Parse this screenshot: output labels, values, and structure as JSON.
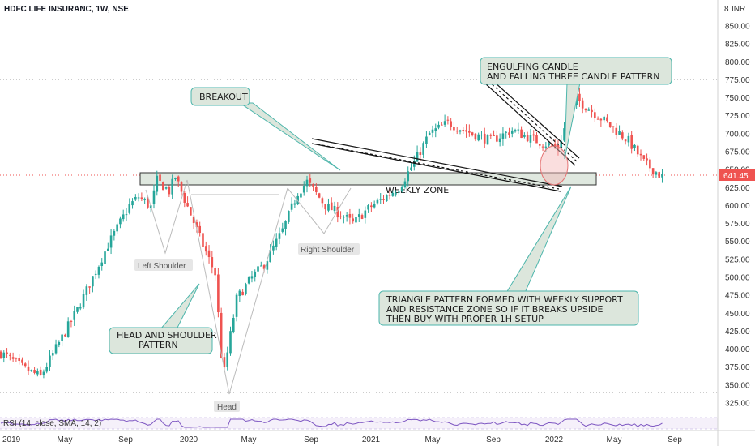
{
  "header": {
    "title": "HDFC LIFE INSURANC, 1W, NSE",
    "currency": "INR",
    "currency_badge": "8"
  },
  "price_tag": "641.45",
  "annotations": {
    "engulfing": [
      "ENGULFING CANDLE",
      "AND FALLING THREE CANDLE PATTERN"
    ],
    "breakout": [
      "BREAKOUT"
    ],
    "weekly_zone": "WEEKLY ZONE",
    "head_shoulder": [
      "HEAD AND SHOULDER",
      "PATTERN"
    ],
    "triangle": [
      "TRIANGLE PATTERN FORMED WITH WEEKLY SUPPORT",
      "AND RESISTANCE ZONE SO IF IT BREAKS UPSIDE",
      "THEN BUY WITH PROPER 1H SETUP"
    ],
    "left_shoulder": "Left Shoulder",
    "right_shoulder": "Right Shoulder",
    "head": "Head"
  },
  "rsi_label": "RSI (14, close, SMA, 14, 2)",
  "colors": {
    "up": "#26a69a",
    "down": "#ef5350",
    "zone": "#dfe8df",
    "callout": "#dce6dc",
    "callout_border": "#4db6ac",
    "price_tag": "#ef5350"
  },
  "chart_data": {
    "type": "candlestick",
    "title": "HDFC LIFE INSURANC, 1W, NSE",
    "x_ticks": [
      "2019",
      "May",
      "Sep",
      "2020",
      "May",
      "Sep",
      "2021",
      "May",
      "Sep",
      "2022",
      "May",
      "Sep"
    ],
    "y_ticks": [
      850,
      825,
      800,
      775,
      750,
      725,
      700,
      675,
      650,
      625,
      600,
      575,
      550,
      525,
      500,
      475,
      450,
      425,
      400,
      375,
      350,
      325
    ],
    "ylim": [
      305,
      875
    ],
    "last_price": 641.45,
    "zone": [
      628,
      645
    ],
    "dotted_levels": [
      775,
      641.45,
      342
    ],
    "waypoints": [
      [
        0,
        395
      ],
      [
        8,
        372
      ],
      [
        13,
        362
      ],
      [
        25,
        455
      ],
      [
        35,
        545
      ],
      [
        42,
        600
      ],
      [
        45,
        612
      ],
      [
        49,
        598
      ],
      [
        51,
        635
      ],
      [
        55,
        620
      ],
      [
        57,
        640
      ],
      [
        61,
        598
      ],
      [
        66,
        545
      ],
      [
        70,
        505
      ],
      [
        72,
        392
      ],
      [
        73,
        370
      ],
      [
        77,
        470
      ],
      [
        82,
        500
      ],
      [
        86,
        518
      ],
      [
        92,
        565
      ],
      [
        97,
        618
      ],
      [
        100,
        633
      ],
      [
        106,
        600
      ],
      [
        112,
        585
      ],
      [
        115,
        575
      ],
      [
        119,
        592
      ],
      [
        122,
        602
      ],
      [
        125,
        610
      ],
      [
        130,
        625
      ],
      [
        135,
        660
      ],
      [
        140,
        700
      ],
      [
        146,
        715
      ],
      [
        154,
        700
      ],
      [
        160,
        690
      ],
      [
        167,
        705
      ],
      [
        175,
        690
      ],
      [
        182,
        680
      ],
      [
        185,
        720
      ],
      [
        188,
        748
      ],
      [
        192,
        735
      ],
      [
        198,
        715
      ],
      [
        205,
        690
      ],
      [
        210,
        660
      ],
      [
        213,
        650
      ],
      [
        216,
        640
      ]
    ]
  }
}
